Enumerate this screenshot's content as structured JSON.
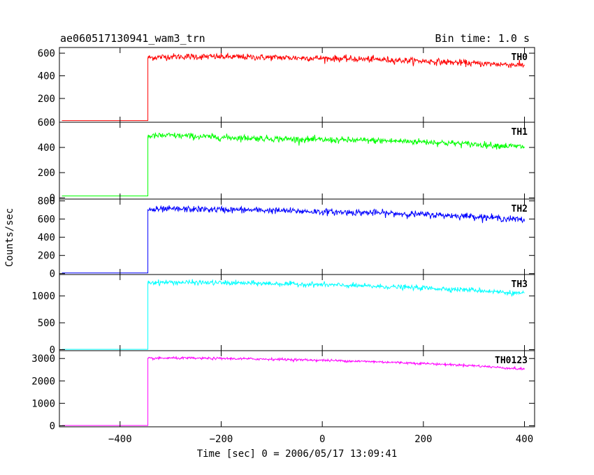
{
  "chart_data": {
    "type": "line",
    "title": "ae060517130941_wam3_trn",
    "subtitle": "Bin time: 1.0 s",
    "xlabel": "Time [sec] 0 = 2006/05/17 13:09:41",
    "ylabel": "Counts/sec",
    "xlim": [
      -520,
      420
    ],
    "x_ticks": [
      -400,
      -200,
      0,
      200,
      400
    ],
    "x_tick_labels": [
      "−400",
      "−200",
      "0",
      "200",
      "400"
    ],
    "onset_time": -345,
    "grid": false,
    "series": [
      {
        "name": "TH0",
        "color": "#ff0000",
        "ylim": [
          -10,
          650
        ],
        "y_ticks": [
          200,
          400,
          600
        ],
        "y_tick_labels": [
          "200",
          "400",
          "600"
        ],
        "baseline": 5,
        "trend_x": [
          -345,
          -300,
          -200,
          -100,
          0,
          100,
          200,
          300,
          400
        ],
        "trend_y": [
          560,
          570,
          568,
          562,
          555,
          545,
          530,
          510,
          495
        ],
        "noise": 28
      },
      {
        "name": "TH1",
        "color": "#00ff00",
        "ylim": [
          -10,
          600
        ],
        "y_ticks": [
          0,
          200,
          400,
          600
        ],
        "y_tick_labels": [
          "0",
          "200",
          "400",
          "600"
        ],
        "baseline": 15,
        "trend_x": [
          -345,
          -300,
          -200,
          -100,
          0,
          100,
          200,
          300,
          400
        ],
        "trend_y": [
          490,
          495,
          480,
          470,
          460,
          455,
          445,
          425,
          405
        ],
        "noise": 25
      },
      {
        "name": "TH2",
        "color": "#0000ff",
        "ylim": [
          -10,
          820
        ],
        "y_ticks": [
          0,
          200,
          400,
          600,
          800
        ],
        "y_tick_labels": [
          "0",
          "200",
          "400",
          "600",
          "800"
        ],
        "baseline": 8,
        "trend_x": [
          -345,
          -300,
          -200,
          -100,
          0,
          100,
          200,
          300,
          400
        ],
        "trend_y": [
          700,
          710,
          705,
          695,
          680,
          670,
          650,
          630,
          590
        ],
        "noise": 35
      },
      {
        "name": "TH3",
        "color": "#00ffff",
        "ylim": [
          -20,
          1400
        ],
        "y_ticks": [
          0,
          500,
          1000
        ],
        "y_tick_labels": [
          "0",
          "500",
          "1000"
        ],
        "baseline": 5,
        "trend_x": [
          -345,
          -300,
          -200,
          -100,
          0,
          100,
          200,
          300,
          400
        ],
        "trend_y": [
          1250,
          1255,
          1245,
          1230,
          1210,
          1180,
          1150,
          1110,
          1040
        ],
        "noise": 45
      },
      {
        "name": "TH0123",
        "color": "#ff00ff",
        "ylim": [
          -50,
          3350
        ],
        "y_ticks": [
          0,
          1000,
          2000,
          3000
        ],
        "y_tick_labels": [
          "0",
          "1000",
          "2000",
          "3000"
        ],
        "baseline": 10,
        "trend_x": [
          -345,
          -300,
          -200,
          -100,
          0,
          100,
          200,
          300,
          400
        ],
        "trend_y": [
          3000,
          3020,
          3000,
          2970,
          2920,
          2860,
          2780,
          2680,
          2520
        ],
        "noise": 55
      }
    ]
  }
}
